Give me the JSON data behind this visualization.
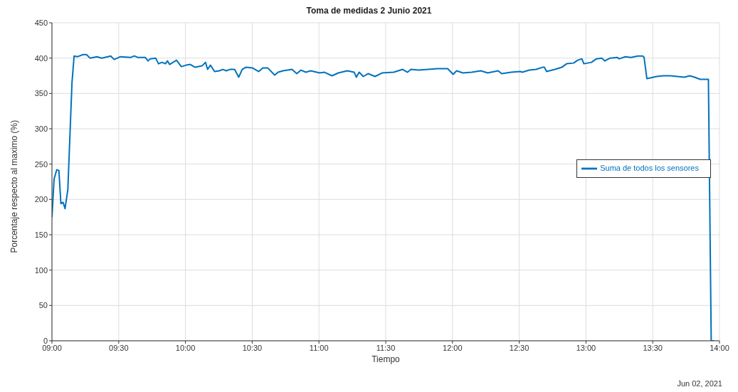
{
  "chart_data": {
    "type": "line",
    "title": "Toma de medidas 2 Junio 2021",
    "xlabel": "Tiempo",
    "ylabel": "Porcentaje respecto al maximo (%)",
    "annotations": [
      "Jun 02, 2021"
    ],
    "xlim": [
      9,
      14
    ],
    "xticks": [
      {
        "value": 9,
        "label": "09:00"
      },
      {
        "value": 9.5,
        "label": "09:30"
      },
      {
        "value": 10,
        "label": "10:00"
      },
      {
        "value": 10.5,
        "label": "10:30"
      },
      {
        "value": 11,
        "label": "11:00"
      },
      {
        "value": 11.5,
        "label": "11:30"
      },
      {
        "value": 12,
        "label": "12:00"
      },
      {
        "value": 12.5,
        "label": "12:30"
      },
      {
        "value": 13,
        "label": "13:00"
      },
      {
        "value": 13.5,
        "label": "13:30"
      },
      {
        "value": 14,
        "label": "14:00"
      }
    ],
    "ylim": [
      0,
      450
    ],
    "yticks": [
      0,
      50,
      100,
      150,
      200,
      250,
      300,
      350,
      400,
      450
    ],
    "grid": true,
    "legend": "right",
    "marker": "none",
    "line_style": "solid",
    "x": [
      9.0,
      9.016,
      9.036,
      9.052,
      9.067,
      9.083,
      9.098,
      9.119,
      9.15,
      9.166,
      9.192,
      9.233,
      9.259,
      9.285,
      9.337,
      9.373,
      9.44,
      9.466,
      9.513,
      9.591,
      9.617,
      9.642,
      9.699,
      9.72,
      9.736,
      9.777,
      9.798,
      9.824,
      9.85,
      9.865,
      9.881,
      9.933,
      9.969,
      10.005,
      10.036,
      10.073,
      10.124,
      10.15,
      10.166,
      10.187,
      10.218,
      10.254,
      10.28,
      10.306,
      10.332,
      10.368,
      10.399,
      10.425,
      10.451,
      10.503,
      10.549,
      10.58,
      10.617,
      10.668,
      10.694,
      10.731,
      10.798,
      10.834,
      10.865,
      10.902,
      10.938,
      11.005,
      11.041,
      11.098,
      11.145,
      11.212,
      11.264,
      11.28,
      11.301,
      11.332,
      11.368,
      11.42,
      11.472,
      11.56,
      11.627,
      11.663,
      11.689,
      11.746,
      11.819,
      11.886,
      11.964,
      12.005,
      12.031,
      12.078,
      12.145,
      12.212,
      12.264,
      12.342,
      12.368,
      12.44,
      12.508,
      12.523,
      12.575,
      12.627,
      12.674,
      12.689,
      12.705,
      12.767,
      12.819,
      12.855,
      12.907,
      12.938,
      12.969,
      12.984,
      13.041,
      13.078,
      13.119,
      13.14,
      13.181,
      13.233,
      13.249,
      13.295,
      13.337,
      13.389,
      13.425,
      13.435,
      13.456,
      13.482,
      13.528,
      13.58,
      13.632,
      13.684,
      13.736,
      13.777,
      13.813,
      13.855,
      13.917,
      13.938,
      13.959
    ],
    "series": [
      {
        "name": "Suma de todos los sensores",
        "color": "#0072bd",
        "values": [
          175,
          229,
          242,
          241,
          194,
          196,
          187,
          214,
          365,
          403,
          402,
          405,
          405,
          400,
          402,
          400,
          403,
          398,
          402,
          401,
          403,
          401,
          401,
          396,
          399,
          400,
          392,
          394,
          392,
          396,
          391,
          397,
          388,
          390,
          391,
          387,
          389,
          394,
          384,
          390,
          381,
          382,
          384,
          382,
          384,
          384,
          373,
          384,
          387,
          386,
          381,
          386,
          386,
          376,
          380,
          382,
          384,
          378,
          383,
          380,
          382,
          379,
          380,
          375,
          379,
          382,
          380,
          373,
          380,
          374,
          378,
          374,
          379,
          380,
          384,
          380,
          384,
          383,
          384,
          385,
          385,
          377,
          382,
          379,
          380,
          382,
          379,
          382,
          378,
          380,
          381,
          380,
          383,
          384,
          387,
          387,
          381,
          384,
          387,
          392,
          393,
          397,
          399,
          392,
          394,
          399,
          400,
          396,
          400,
          401,
          399,
          402,
          401,
          403,
          403,
          401,
          371,
          372,
          374,
          375,
          375,
          374,
          373,
          375,
          373,
          370,
          370,
          0,
          0
        ]
      }
    ]
  }
}
